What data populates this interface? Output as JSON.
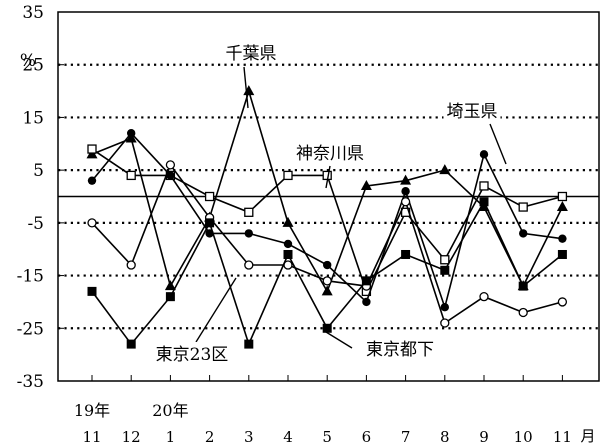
{
  "chart_data": {
    "type": "line",
    "title": "",
    "xlabel": "",
    "ylabel": "",
    "y_unit": "%",
    "x_unit": "月",
    "ylim": [
      -35,
      35
    ],
    "yticks": [
      35,
      25,
      15,
      5,
      -5,
      -15,
      -25,
      -35
    ],
    "grid": "dotted horizontal",
    "categories": [
      "11",
      "12",
      "1",
      "2",
      "3",
      "4",
      "5",
      "6",
      "7",
      "8",
      "9",
      "10",
      "11"
    ],
    "year_labels": [
      {
        "label": "19年",
        "index": 0
      },
      {
        "label": "20年",
        "index": 2
      }
    ],
    "series": [
      {
        "name": "千葉県",
        "marker": "filled-triangle",
        "values": [
          8,
          11,
          -17,
          -4,
          20,
          -5,
          -18,
          2,
          3,
          5,
          -2,
          -17,
          -2
        ]
      },
      {
        "name": "神奈川県",
        "marker": "open-square",
        "values": [
          9,
          4,
          4,
          0,
          -3,
          4,
          4,
          -18,
          -3,
          -12,
          2,
          -2,
          0
        ]
      },
      {
        "name": "埼玉県",
        "marker": "filled-circle",
        "values": [
          3,
          12,
          4,
          -7,
          -7,
          -9,
          -13,
          -20,
          1,
          -21,
          8,
          -7,
          -8
        ]
      },
      {
        "name": "東京23区",
        "marker": "open-circle",
        "values": [
          -5,
          -13,
          6,
          -4,
          -13,
          -13,
          -16,
          -17,
          -1,
          -24,
          -19,
          -22,
          -20
        ]
      },
      {
        "name": "東京都下",
        "marker": "filled-square",
        "values": [
          -18,
          -28,
          -19,
          -5,
          -28,
          -11,
          -25,
          -16,
          -11,
          -14,
          -1,
          -17,
          -11
        ]
      }
    ],
    "callouts": [
      {
        "series": "千葉県",
        "label": "千葉県"
      },
      {
        "series": "神奈川県",
        "label": "神奈川県"
      },
      {
        "series": "埼玉県",
        "label": "埼玉県"
      },
      {
        "series": "東京23区",
        "label": "東京23区"
      },
      {
        "series": "東京都下",
        "label": "東京都下"
      }
    ]
  }
}
